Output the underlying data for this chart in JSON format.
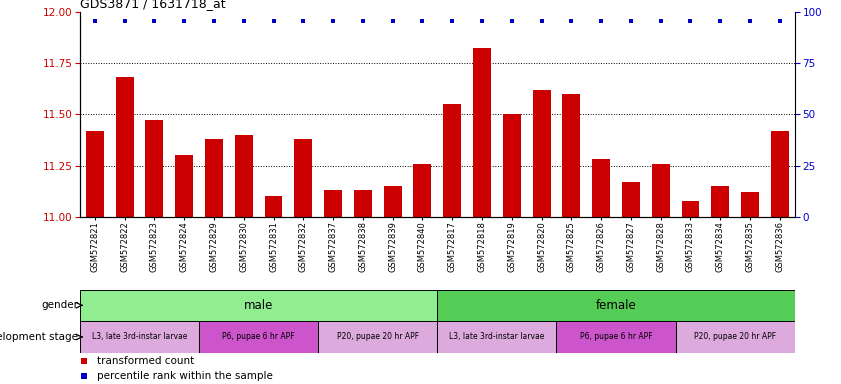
{
  "title": "GDS3871 / 1631718_at",
  "samples": [
    "GSM572821",
    "GSM572822",
    "GSM572823",
    "GSM572824",
    "GSM572829",
    "GSM572830",
    "GSM572831",
    "GSM572832",
    "GSM572837",
    "GSM572838",
    "GSM572839",
    "GSM572840",
    "GSM572817",
    "GSM572818",
    "GSM572819",
    "GSM572820",
    "GSM572825",
    "GSM572826",
    "GSM572827",
    "GSM572828",
    "GSM572833",
    "GSM572834",
    "GSM572835",
    "GSM572836"
  ],
  "bar_values": [
    11.42,
    11.68,
    11.47,
    11.3,
    11.38,
    11.4,
    11.1,
    11.38,
    11.13,
    11.13,
    11.15,
    11.26,
    11.55,
    11.82,
    11.5,
    11.62,
    11.6,
    11.28,
    11.17,
    11.26,
    11.08,
    11.15,
    11.12,
    11.42
  ],
  "ylim_left": [
    11.0,
    12.0
  ],
  "ylim_right": [
    0,
    100
  ],
  "yticks_left": [
    11.0,
    11.25,
    11.5,
    11.75,
    12.0
  ],
  "yticks_right": [
    0,
    25,
    50,
    75,
    100
  ],
  "bar_color": "#cc0000",
  "dot_color": "#0000cc",
  "gender_row": [
    {
      "label": "male",
      "start": 0,
      "end": 12,
      "color": "#90ee90"
    },
    {
      "label": "female",
      "start": 12,
      "end": 24,
      "color": "#55cc55"
    }
  ],
  "dev_stage_row": [
    {
      "label": "L3, late 3rd-instar larvae",
      "start": 0,
      "end": 4,
      "color": "#ddaadd"
    },
    {
      "label": "P6, pupae 6 hr APF",
      "start": 4,
      "end": 8,
      "color": "#cc55cc"
    },
    {
      "label": "P20, pupae 20 hr APF",
      "start": 8,
      "end": 12,
      "color": "#ddaadd"
    },
    {
      "label": "L3, late 3rd-instar larvae",
      "start": 12,
      "end": 16,
      "color": "#ddaadd"
    },
    {
      "label": "P6, pupae 6 hr APF",
      "start": 16,
      "end": 20,
      "color": "#cc55cc"
    },
    {
      "label": "P20, pupae 20 hr APF",
      "start": 20,
      "end": 24,
      "color": "#ddaadd"
    }
  ],
  "legend_items": [
    {
      "label": "transformed count",
      "color": "#cc0000"
    },
    {
      "label": "percentile rank within the sample",
      "color": "#0000cc"
    }
  ],
  "bar_color_left": "#cc0000",
  "bar_color_right": "#0000cc",
  "gender_label": "gender",
  "devstage_label": "development stage"
}
